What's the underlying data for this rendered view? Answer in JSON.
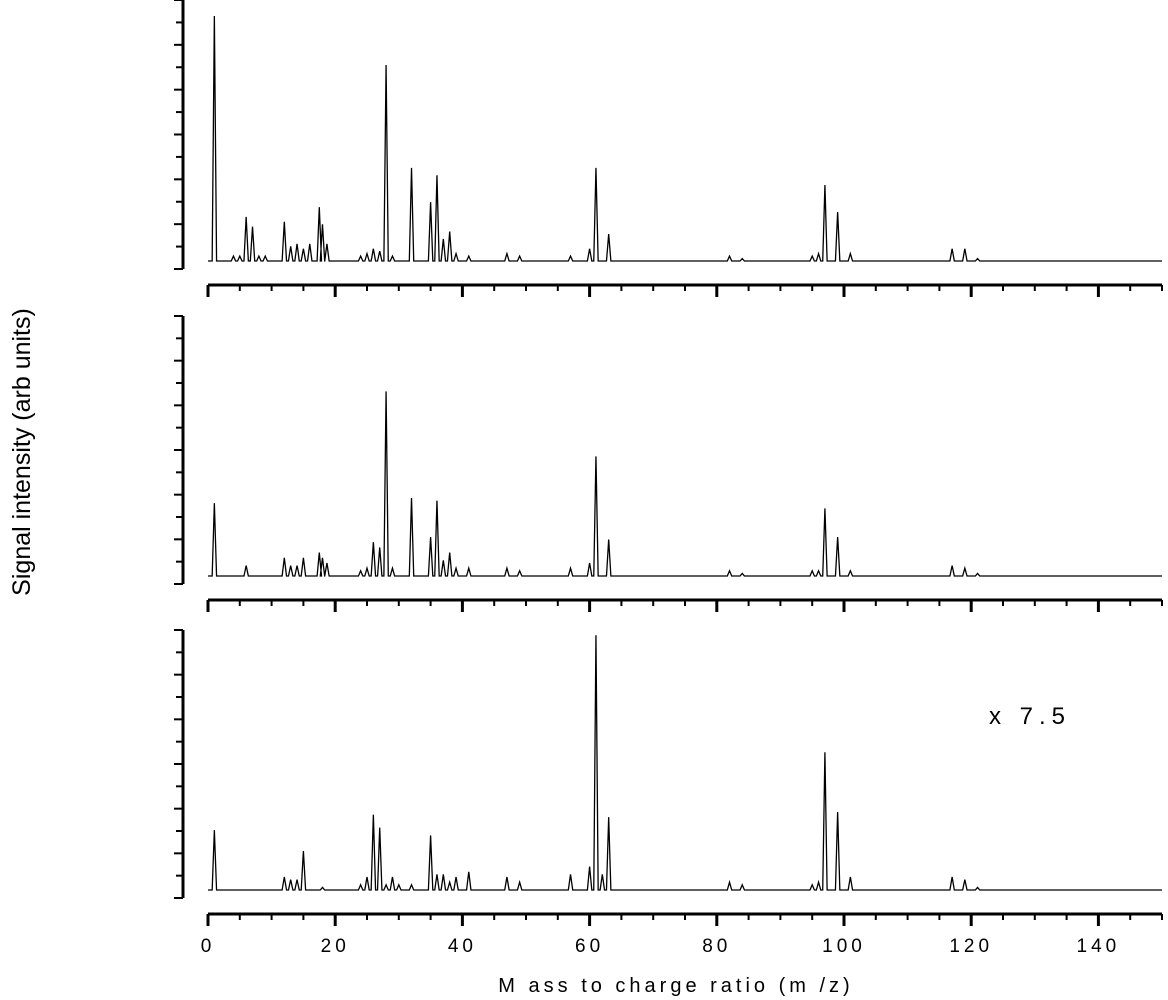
{
  "figure": {
    "ylabel": "Signal intensity (arb units)",
    "xlabel": "M ass to charge ratio (m /z)",
    "annotation": "x 7.5"
  },
  "chart_data": [
    {
      "type": "line",
      "xlim": [
        0,
        150
      ],
      "ylim": [
        0,
        1.0
      ],
      "x_ticks": [
        0,
        20,
        40,
        60,
        80,
        100,
        120,
        140
      ],
      "x_tick_labels": [],
      "y_tick_labels": [],
      "peaks": [
        [
          1,
          1.0
        ],
        [
          4,
          0.02
        ],
        [
          5,
          0.02
        ],
        [
          6,
          0.18
        ],
        [
          7,
          0.14
        ],
        [
          8,
          0.02
        ],
        [
          9,
          0.02
        ],
        [
          12,
          0.16
        ],
        [
          13,
          0.06
        ],
        [
          14,
          0.07
        ],
        [
          15,
          0.05
        ],
        [
          16,
          0.07
        ],
        [
          17.5,
          0.22
        ],
        [
          18,
          0.15
        ],
        [
          18.7,
          0.07
        ],
        [
          24,
          0.02
        ],
        [
          25,
          0.03
        ],
        [
          26,
          0.05
        ],
        [
          27,
          0.04
        ],
        [
          28,
          0.8
        ],
        [
          29,
          0.02
        ],
        [
          32,
          0.38
        ],
        [
          35,
          0.24
        ],
        [
          36,
          0.35
        ],
        [
          37,
          0.09
        ],
        [
          38,
          0.12
        ],
        [
          39,
          0.03
        ],
        [
          41,
          0.02
        ],
        [
          47,
          0.03
        ],
        [
          49,
          0.02
        ],
        [
          57,
          0.02
        ],
        [
          60,
          0.05
        ],
        [
          61,
          0.38
        ],
        [
          63,
          0.11
        ],
        [
          82,
          0.02
        ],
        [
          84,
          0.01
        ],
        [
          95,
          0.02
        ],
        [
          96,
          0.03
        ],
        [
          97,
          0.31
        ],
        [
          99,
          0.2
        ],
        [
          101,
          0.03
        ],
        [
          117,
          0.05
        ],
        [
          119,
          0.05
        ],
        [
          121,
          0.01
        ]
      ]
    },
    {
      "type": "line",
      "xlim": [
        0,
        150
      ],
      "ylim": [
        0,
        1.0
      ],
      "x_ticks": [
        0,
        20,
        40,
        60,
        80,
        100,
        120,
        140
      ],
      "x_tick_labels": [],
      "y_tick_labels": [],
      "peaks": [
        [
          1,
          0.28
        ],
        [
          6,
          0.04
        ],
        [
          12,
          0.07
        ],
        [
          13,
          0.04
        ],
        [
          14,
          0.04
        ],
        [
          15,
          0.07
        ],
        [
          17.5,
          0.09
        ],
        [
          18,
          0.07
        ],
        [
          18.7,
          0.05
        ],
        [
          24,
          0.02
        ],
        [
          25,
          0.03
        ],
        [
          26,
          0.13
        ],
        [
          27,
          0.11
        ],
        [
          28,
          0.71
        ],
        [
          29,
          0.03
        ],
        [
          32,
          0.3
        ],
        [
          35,
          0.15
        ],
        [
          36,
          0.29
        ],
        [
          37,
          0.06
        ],
        [
          38,
          0.09
        ],
        [
          39,
          0.03
        ],
        [
          41,
          0.03
        ],
        [
          47,
          0.03
        ],
        [
          49,
          0.02
        ],
        [
          57,
          0.03
        ],
        [
          60,
          0.05
        ],
        [
          61,
          0.46
        ],
        [
          63,
          0.14
        ],
        [
          82,
          0.02
        ],
        [
          84,
          0.01
        ],
        [
          95,
          0.02
        ],
        [
          96,
          0.02
        ],
        [
          97,
          0.26
        ],
        [
          99,
          0.15
        ],
        [
          101,
          0.02
        ],
        [
          117,
          0.04
        ],
        [
          119,
          0.03
        ],
        [
          121,
          0.01
        ]
      ]
    },
    {
      "type": "line",
      "xlim": [
        0,
        150
      ],
      "ylim": [
        0,
        1.0
      ],
      "x_ticks": [
        0,
        20,
        40,
        60,
        80,
        100,
        120,
        140
      ],
      "x_tick_labels": [
        "0",
        "20",
        "40",
        "60",
        "80",
        "100",
        "120",
        "140"
      ],
      "y_tick_labels": [],
      "peaks": [
        [
          1,
          0.23
        ],
        [
          12,
          0.05
        ],
        [
          13,
          0.04
        ],
        [
          14,
          0.04
        ],
        [
          15,
          0.15
        ],
        [
          18,
          0.01
        ],
        [
          24,
          0.02
        ],
        [
          25,
          0.05
        ],
        [
          26,
          0.29
        ],
        [
          27,
          0.24
        ],
        [
          28,
          0.02
        ],
        [
          29,
          0.05
        ],
        [
          30,
          0.02
        ],
        [
          32,
          0.02
        ],
        [
          35,
          0.21
        ],
        [
          36,
          0.06
        ],
        [
          37,
          0.06
        ],
        [
          38,
          0.03
        ],
        [
          39,
          0.05
        ],
        [
          41,
          0.07
        ],
        [
          47,
          0.05
        ],
        [
          49,
          0.03
        ],
        [
          57,
          0.06
        ],
        [
          60,
          0.09
        ],
        [
          61,
          0.98
        ],
        [
          62,
          0.06
        ],
        [
          63,
          0.28
        ],
        [
          82,
          0.03
        ],
        [
          84,
          0.02
        ],
        [
          95,
          0.02
        ],
        [
          96,
          0.03
        ],
        [
          97,
          0.53
        ],
        [
          99,
          0.3
        ],
        [
          101,
          0.05
        ],
        [
          117,
          0.05
        ],
        [
          119,
          0.04
        ],
        [
          121,
          0.01
        ]
      ]
    }
  ]
}
